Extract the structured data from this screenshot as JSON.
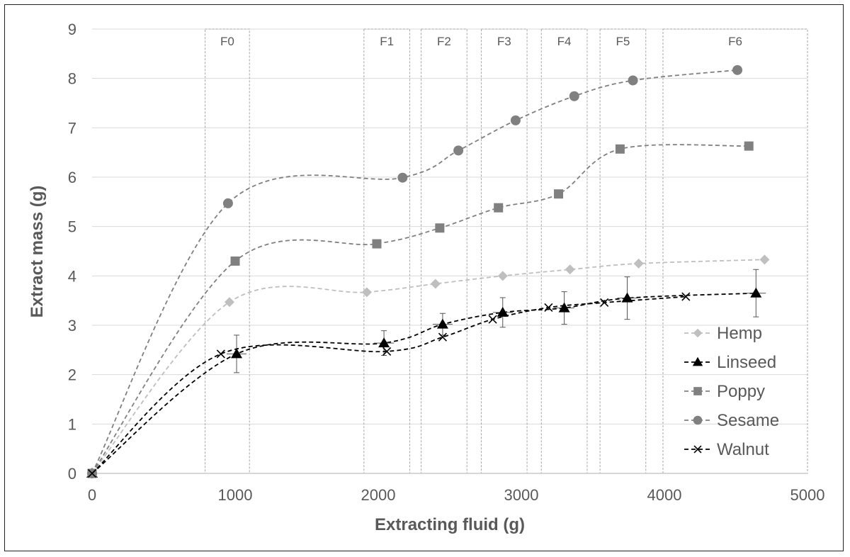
{
  "chart_data": {
    "type": "line",
    "title": "",
    "xlabel": "Extracting fluid (g)",
    "ylabel": "Extract mass (g)",
    "xlim": [
      0,
      5000
    ],
    "ylim": [
      0,
      9
    ],
    "xticks": [
      0,
      1000,
      2000,
      3000,
      4000,
      5000
    ],
    "yticks": [
      0,
      1,
      2,
      3,
      4,
      5,
      6,
      7,
      8,
      9
    ],
    "grid": "horizontal",
    "legend_position": "bottom-right",
    "line_style": "dashed smoothed",
    "regions": [
      {
        "label": "F0",
        "x_range": [
          790,
          1100
        ]
      },
      {
        "label": "F1",
        "x_range": [
          1900,
          2220
        ]
      },
      {
        "label": "F2",
        "x_range": [
          2300,
          2620
        ]
      },
      {
        "label": "F3",
        "x_range": [
          2720,
          3040
        ]
      },
      {
        "label": "F4",
        "x_range": [
          3140,
          3460
        ]
      },
      {
        "label": "F5",
        "x_range": [
          3550,
          3870
        ]
      },
      {
        "label": "F6",
        "x_range": [
          3990,
          5000
        ]
      }
    ],
    "series": [
      {
        "name": "Hemp",
        "marker": "diamond",
        "color": "#bfbfbf",
        "points": [
          [
            0,
            0
          ],
          [
            960,
            3.47
          ],
          [
            1920,
            3.67
          ],
          [
            2400,
            3.84
          ],
          [
            2870,
            4.0
          ],
          [
            3340,
            4.13
          ],
          [
            3820,
            4.25
          ],
          [
            4700,
            4.33
          ]
        ]
      },
      {
        "name": "Linseed",
        "marker": "triangle",
        "color": "#000000",
        "points": [
          [
            0,
            0
          ],
          [
            1010,
            2.42
          ],
          [
            2040,
            2.64
          ],
          [
            2450,
            3.02
          ],
          [
            2870,
            3.26
          ],
          [
            3300,
            3.35
          ],
          [
            3740,
            3.55
          ],
          [
            4640,
            3.65
          ]
        ],
        "error": [
          0,
          0.38,
          0.25,
          0.22,
          0.3,
          0.33,
          0.43,
          0.48
        ]
      },
      {
        "name": "Poppy",
        "marker": "square",
        "color": "#808080",
        "points": [
          [
            0,
            0
          ],
          [
            1000,
            4.3
          ],
          [
            1990,
            4.65
          ],
          [
            2430,
            4.97
          ],
          [
            2840,
            5.38
          ],
          [
            3260,
            5.66
          ],
          [
            3690,
            6.57
          ],
          [
            4590,
            6.63
          ]
        ]
      },
      {
        "name": "Sesame",
        "marker": "circle",
        "color": "#808080",
        "points": [
          [
            0,
            0
          ],
          [
            950,
            5.47
          ],
          [
            2170,
            5.99
          ],
          [
            2560,
            6.54
          ],
          [
            2960,
            7.15
          ],
          [
            3370,
            7.64
          ],
          [
            3780,
            7.96
          ],
          [
            4510,
            8.17
          ]
        ]
      },
      {
        "name": "Walnut",
        "marker": "cross",
        "color": "#000000",
        "points": [
          [
            0,
            0
          ],
          [
            900,
            2.42
          ],
          [
            2060,
            2.47
          ],
          [
            2450,
            2.76
          ],
          [
            2800,
            3.12
          ],
          [
            3190,
            3.36
          ],
          [
            3580,
            3.46
          ],
          [
            4150,
            3.58
          ]
        ]
      }
    ]
  }
}
